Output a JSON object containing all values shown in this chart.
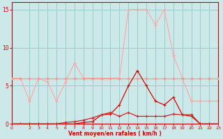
{
  "x": [
    0,
    1,
    2,
    3,
    4,
    5,
    6,
    7,
    8,
    9,
    10,
    11,
    12,
    13,
    14,
    15,
    16,
    17,
    18,
    19,
    20,
    21,
    22,
    23
  ],
  "line_rafales": [
    6.0,
    6.0,
    3.0,
    6.0,
    5.5,
    3.0,
    5.5,
    8.0,
    6.0,
    6.0,
    6.0,
    6.0,
    6.0,
    15.0,
    15.0,
    15.0,
    13.0,
    15.0,
    9.0,
    6.0,
    3.0,
    3.0,
    3.0,
    3.0
  ],
  "line_flat6": [
    6.0,
    6.0,
    6.0,
    6.0,
    6.0,
    6.0,
    6.0,
    6.0,
    6.0,
    6.0,
    6.0,
    6.0,
    6.0,
    6.0,
    6.0,
    6.0,
    6.0,
    6.0,
    6.0,
    6.0,
    6.0,
    6.0,
    6.0,
    6.0
  ],
  "line_vent_moyen": [
    0.0,
    0.0,
    0.0,
    0.0,
    0.0,
    0.0,
    0.0,
    0.0,
    0.2,
    0.3,
    1.2,
    1.3,
    2.5,
    5.0,
    7.0,
    5.0,
    3.0,
    2.5,
    3.5,
    1.2,
    1.2,
    0.0,
    0.0,
    0.0
  ],
  "line_low": [
    0.0,
    0.0,
    0.0,
    0.0,
    0.0,
    0.0,
    0.2,
    0.3,
    0.5,
    0.8,
    1.2,
    1.5,
    1.0,
    1.5,
    1.0,
    1.0,
    1.0,
    1.0,
    1.3,
    1.2,
    1.0,
    0.0,
    0.0,
    0.0
  ],
  "color_rafales": "#ffaaaa",
  "color_flat6": "#ff9999",
  "color_vent_moyen": "#dd0000",
  "color_low": "#cc2222",
  "bg_color": "#cce8e8",
  "grid_color": "#99cccc",
  "text_color": "#cc0000",
  "axis_label": "Vent moyen/en rafales ( km/h )",
  "xlim": [
    0,
    23
  ],
  "ylim": [
    0,
    16
  ],
  "yticks": [
    0,
    5,
    10,
    15
  ],
  "xticks": [
    0,
    2,
    3,
    4,
    5,
    6,
    7,
    8,
    9,
    10,
    11,
    12,
    13,
    14,
    15,
    16,
    17,
    18,
    19,
    20,
    21,
    22,
    23
  ]
}
